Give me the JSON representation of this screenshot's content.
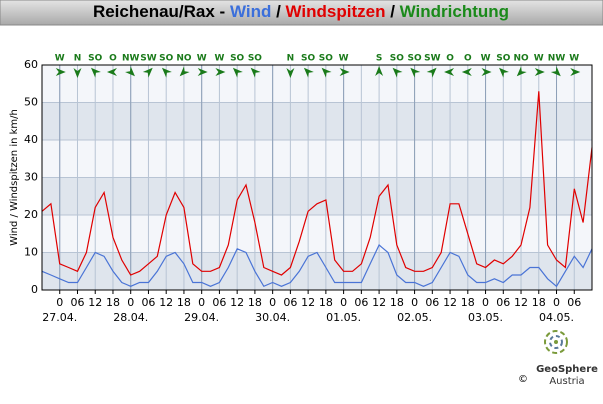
{
  "chart_data": {
    "type": "line",
    "title_parts": [
      {
        "text": "Reichenau/Rax - ",
        "color": "#000000"
      },
      {
        "text": "Wind",
        "color": "#3b6fdb"
      },
      {
        "text": " / ",
        "color": "#000000"
      },
      {
        "text": "Windspitzen",
        "color": "#e00000"
      },
      {
        "text": " / ",
        "color": "#000000"
      },
      {
        "text": "Windrichtung",
        "color": "#1a8a1a"
      }
    ],
    "ylabel": "Wind / Windspitzen in km/h",
    "ylim": [
      0,
      60
    ],
    "yticks": [
      0,
      10,
      20,
      30,
      40,
      50,
      60
    ],
    "xlim": [
      -6,
      180
    ],
    "xticks": [
      0,
      {
        "value": 6,
        "label": "06"
      },
      12,
      18,
      {
        "value": 24,
        "label": "0"
      },
      {
        "value": 30,
        "label": "06"
      },
      {
        "value": 36,
        "label": "12"
      },
      {
        "value": 42,
        "label": "18"
      },
      {
        "value": 48,
        "label": "0"
      },
      {
        "value": 54,
        "label": "06"
      },
      {
        "value": 60,
        "label": "12"
      },
      {
        "value": 66,
        "label": "18"
      },
      {
        "value": 72,
        "label": "0"
      },
      {
        "value": 78,
        "label": "06"
      },
      {
        "value": 84,
        "label": "12"
      },
      {
        "value": 90,
        "label": "18"
      },
      {
        "value": 96,
        "label": "0"
      },
      {
        "value": 102,
        "label": "06"
      },
      {
        "value": 108,
        "label": "12"
      },
      {
        "value": 114,
        "label": "18"
      },
      {
        "value": 120,
        "label": "0"
      },
      {
        "value": 126,
        "label": "06"
      },
      {
        "value": 132,
        "label": "12"
      },
      {
        "value": 138,
        "label": "18"
      },
      {
        "value": 144,
        "label": "0"
      },
      {
        "value": 150,
        "label": "06"
      },
      {
        "value": 156,
        "label": "12"
      },
      {
        "value": 162,
        "label": "18"
      },
      {
        "value": 168,
        "label": "0"
      },
      {
        "value": 174,
        "label": "06"
      }
    ],
    "xdate_labels": [
      {
        "value": 0,
        "label": "27.04."
      },
      {
        "value": 24,
        "label": "28.04."
      },
      {
        "value": 48,
        "label": "29.04."
      },
      {
        "value": 72,
        "label": "30.04."
      },
      {
        "value": 96,
        "label": "01.05."
      },
      {
        "value": 120,
        "label": "02.05."
      },
      {
        "value": 144,
        "label": "03.05."
      },
      {
        "value": 168,
        "label": "04.05."
      }
    ],
    "grid": true,
    "x": [
      -6,
      -3,
      0,
      3,
      6,
      9,
      12,
      15,
      18,
      21,
      24,
      27,
      30,
      33,
      36,
      39,
      42,
      45,
      48,
      51,
      54,
      57,
      60,
      63,
      66,
      69,
      72,
      75,
      78,
      81,
      84,
      87,
      90,
      93,
      96,
      99,
      102,
      105,
      108,
      111,
      114,
      117,
      120,
      123,
      126,
      129,
      132,
      135,
      138,
      141,
      144,
      147,
      150,
      153,
      156,
      159,
      162,
      165,
      168,
      171,
      174,
      177,
      180
    ],
    "series": [
      {
        "name": "Windspitzen",
        "color": "#e00000",
        "values": [
          21,
          23,
          7,
          6,
          5,
          10,
          22,
          26,
          14,
          8,
          4,
          5,
          7,
          9,
          20,
          26,
          22,
          7,
          5,
          5,
          6,
          12,
          24,
          28,
          18,
          6,
          5,
          4,
          6,
          13,
          21,
          23,
          24,
          8,
          5,
          5,
          7,
          14,
          25,
          28,
          12,
          6,
          5,
          5,
          6,
          10,
          23,
          23,
          15,
          7,
          6,
          8,
          7,
          9,
          12,
          22,
          53,
          12,
          8,
          6,
          27,
          18,
          38
        ]
      },
      {
        "name": "Wind",
        "color": "#4a74d6",
        "values": [
          5,
          4,
          3,
          2,
          2,
          6,
          10,
          9,
          5,
          2,
          1,
          2,
          2,
          5,
          9,
          10,
          7,
          2,
          2,
          1,
          2,
          6,
          11,
          10,
          5,
          1,
          2,
          1,
          2,
          5,
          9,
          10,
          6,
          2,
          2,
          2,
          2,
          7,
          12,
          10,
          4,
          2,
          2,
          1,
          2,
          6,
          10,
          9,
          4,
          2,
          2,
          3,
          2,
          4,
          4,
          6,
          6,
          3,
          1,
          5,
          9,
          6,
          11
        ]
      }
    ],
    "directions": {
      "color": "#1a7a1a",
      "labels": [
        "W",
        "N",
        "SO",
        "O",
        "NW",
        "SW",
        "SO",
        "NO",
        "W",
        "W",
        "SO",
        "SO",
        "N",
        "SO",
        "SO",
        "W",
        "S",
        "SO",
        "SO",
        "SW",
        "O",
        "O",
        "W",
        "SO",
        "NO",
        "W",
        "NW",
        "W"
      ],
      "x": [
        0,
        6,
        12,
        18,
        24,
        30,
        36,
        42,
        48,
        54,
        60,
        66,
        78,
        84,
        90,
        96,
        108,
        114,
        120,
        126,
        132,
        138,
        144,
        150,
        156,
        162,
        168,
        174
      ]
    }
  },
  "branding": {
    "name": "GeoSphere",
    "sub": "Austria",
    "copyright": "©"
  }
}
